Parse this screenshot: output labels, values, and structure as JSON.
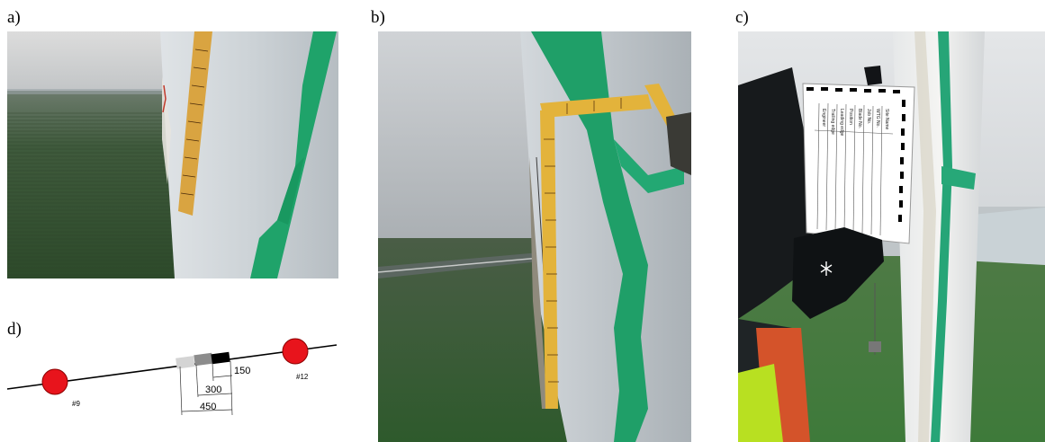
{
  "panels": {
    "a": {
      "label": "a)"
    },
    "b": {
      "label": "b)"
    },
    "c": {
      "label": "c)"
    },
    "d": {
      "label": "d)"
    }
  },
  "diagram": {
    "markers": [
      "#9",
      "#12"
    ],
    "dimensions": [
      "150",
      "300",
      "450"
    ],
    "colors": {
      "marker_fill": "#e8141c",
      "marker_stroke": "#8c0000",
      "zone_light": "#d4d4d4",
      "zone_mid": "#8c8c8c",
      "zone_dark": "#000000"
    }
  },
  "clipboard": {
    "field_labels": [
      "Site Name",
      "WTG No.",
      "Job No.",
      "Blade No.",
      "Position",
      "Leading edge",
      "Trailing edge",
      "Engineer"
    ]
  }
}
